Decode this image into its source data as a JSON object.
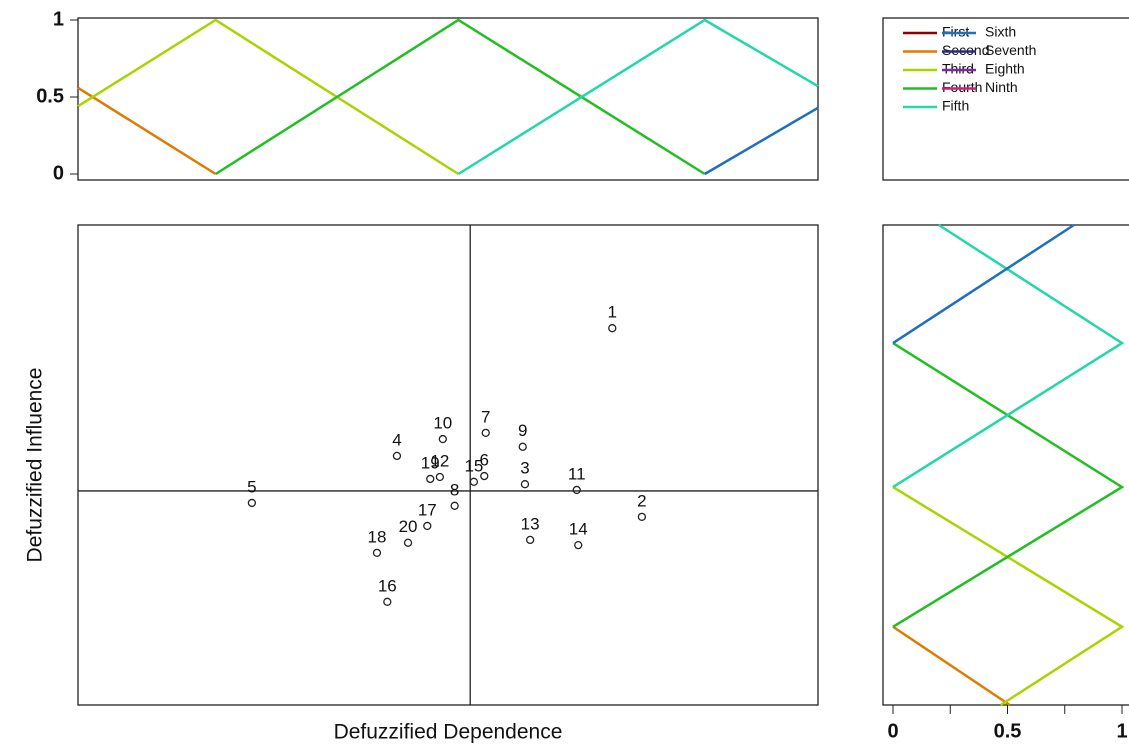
{
  "chart_data": [
    {
      "type": "line",
      "xlim": [
        0,
        100
      ],
      "ylim": [
        0,
        1
      ],
      "yticks": [
        0,
        0.5,
        1
      ],
      "series": [
        {
          "name": "First",
          "color": "#8b0000",
          "x": [],
          "values": []
        },
        {
          "name": "Second",
          "color": "#e07b00",
          "x": [
            0,
            18.6
          ],
          "values": [
            0.56,
            0
          ]
        },
        {
          "name": "Third",
          "color": "#a8d400",
          "x": [
            0,
            18.6,
            51.4
          ],
          "values": [
            0.44,
            1,
            0
          ]
        },
        {
          "name": "Fourth",
          "color": "#22bf22",
          "x": [
            18.6,
            51.4,
            84.7
          ],
          "values": [
            0,
            1,
            0
          ]
        },
        {
          "name": "Fifth",
          "color": "#22d8a8",
          "x": [
            51.4,
            84.7,
            100
          ],
          "values": [
            0,
            1,
            0.57
          ]
        },
        {
          "name": "Sixth",
          "color": "#1f6fc0",
          "x": [
            84.7,
            100
          ],
          "values": [
            0,
            0.43
          ]
        },
        {
          "name": "Seventh",
          "color": "#2a2a80",
          "x": [],
          "values": []
        },
        {
          "name": "Eighth",
          "color": "#7a2a9a",
          "x": [],
          "values": []
        },
        {
          "name": "Ninth",
          "color": "#d0207a",
          "x": [],
          "values": []
        }
      ]
    },
    {
      "type": "scatter",
      "x_label": "Defuzzified Dependence",
      "y_label": "Defuzzified Influence",
      "xlim": [
        0,
        100
      ],
      "ylim": [
        0,
        100
      ],
      "x_divider": 53,
      "y_divider": 44.6,
      "labels": [
        "1",
        "2",
        "3",
        "4",
        "5",
        "6",
        "7",
        "8",
        "9",
        "10",
        "11",
        "12",
        "13",
        "14",
        "15",
        "16",
        "17",
        "18",
        "19",
        "20"
      ],
      "x": [
        72.2,
        76.2,
        60.4,
        43.1,
        23.5,
        54.9,
        55.1,
        50.9,
        60.1,
        49.3,
        67.4,
        48.9,
        61.1,
        67.6,
        53.5,
        41.8,
        47.2,
        40.4,
        47.6,
        44.6
      ],
      "values": [
        78.5,
        39.2,
        46.0,
        51.9,
        42.1,
        47.7,
        56.7,
        41.5,
        53.8,
        55.4,
        44.8,
        47.5,
        34.4,
        33.3,
        46.5,
        21.5,
        37.3,
        31.7,
        47.1,
        33.8
      ]
    },
    {
      "type": "line",
      "xlim": [
        0,
        1
      ],
      "xticks": [
        0,
        0.5,
        1
      ],
      "minor_xticks": [
        0.25,
        0.75
      ],
      "ylim": [
        0,
        100
      ],
      "series": [
        {
          "color": "#e07b00",
          "values": [
            0,
            0.51
          ],
          "y": [
            16.3,
            0
          ]
        },
        {
          "color": "#a8d400",
          "values": [
            0,
            1,
            0.47
          ],
          "y": [
            45.4,
            16.3,
            0
          ]
        },
        {
          "color": "#22bf22",
          "values": [
            0,
            1,
            0
          ],
          "y": [
            75.4,
            45.4,
            16.3
          ]
        },
        {
          "color": "#22d8a8",
          "values": [
            0.2,
            1,
            0
          ],
          "y": [
            100,
            75.4,
            45.4
          ]
        },
        {
          "color": "#1f6fc0",
          "values": [
            0,
            0.79
          ],
          "y": [
            75.4,
            100
          ]
        }
      ]
    }
  ]
}
